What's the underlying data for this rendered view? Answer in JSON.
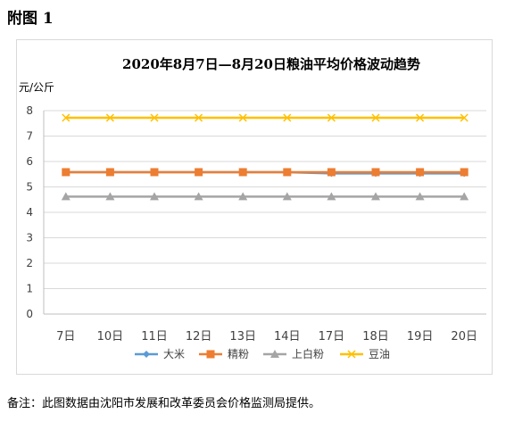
{
  "figure_label": "附图 1",
  "footnote": "备注：此图数据由沈阳市发展和改革委员会价格监测局提供。",
  "chart_data": {
    "type": "line",
    "title": "2020年8月7日—8月20日粮油平均价格波动趋势",
    "ylabel": "元/公斤",
    "xlabel": "",
    "ylim": [
      0,
      8
    ],
    "yticks": [
      0,
      1,
      2,
      3,
      4,
      5,
      6,
      7,
      8
    ],
    "grid": true,
    "legend_position": "bottom",
    "categories": [
      "7日",
      "10日",
      "11日",
      "12日",
      "13日",
      "14日",
      "17日",
      "18日",
      "19日",
      "20日"
    ],
    "series": [
      {
        "name": "大米",
        "color": "#5b9bd5",
        "marker": "diamond",
        "values": [
          5.58,
          5.58,
          5.58,
          5.58,
          5.58,
          5.58,
          5.53,
          5.53,
          5.53,
          5.53
        ]
      },
      {
        "name": "精粉",
        "color": "#ed7d31",
        "marker": "square",
        "values": [
          5.58,
          5.58,
          5.58,
          5.58,
          5.58,
          5.58,
          5.58,
          5.58,
          5.58,
          5.58
        ]
      },
      {
        "name": "上白粉",
        "color": "#a5a5a5",
        "marker": "triangle",
        "values": [
          4.62,
          4.62,
          4.62,
          4.62,
          4.62,
          4.62,
          4.62,
          4.62,
          4.62,
          4.62
        ]
      },
      {
        "name": "豆油",
        "color": "#ffc000",
        "marker": "x",
        "values": [
          7.72,
          7.72,
          7.72,
          7.72,
          7.72,
          7.72,
          7.72,
          7.72,
          7.72,
          7.72
        ]
      }
    ]
  }
}
